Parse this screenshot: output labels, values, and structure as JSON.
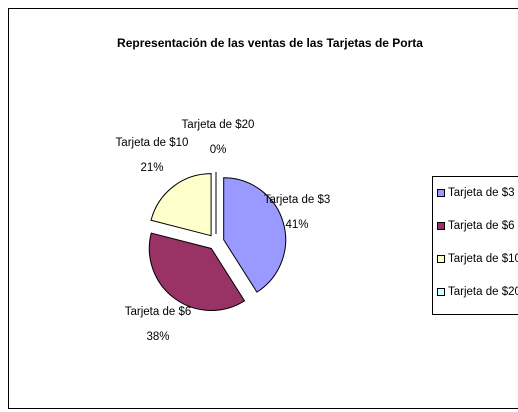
{
  "chart_data": {
    "type": "pie",
    "title": "Representación de las ventas de las Tarjetas de Porta",
    "categories": [
      "Tarjeta de $3",
      "Tarjeta de $6",
      "Tarjeta de $10",
      "Tarjeta de $20"
    ],
    "values": [
      41,
      38,
      21,
      0
    ],
    "value_labels": [
      "41%",
      "38%",
      "21%",
      "0%"
    ],
    "colors": [
      "#9999ff",
      "#993366",
      "#ffffcc",
      "#ccffff"
    ],
    "legend": "right"
  }
}
